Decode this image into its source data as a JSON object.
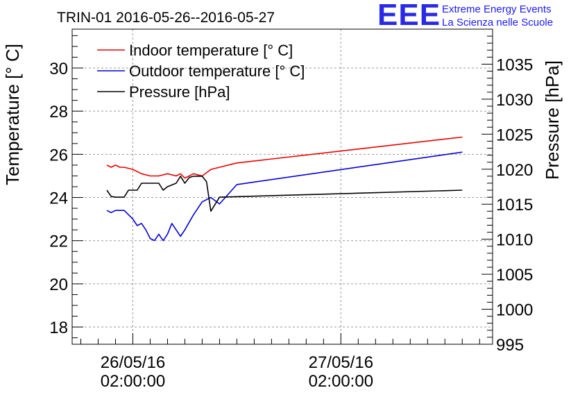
{
  "header": {
    "title": "TRIN-01 2016-05-26--2016-05-27"
  },
  "logo": {
    "mark": "EEE",
    "line1": "Extreme Energy Events",
    "line2": "La Scienza nelle Scuole"
  },
  "chart_data": {
    "type": "line",
    "title": "TRIN-01 2016-05-26--2016-05-27",
    "ylabel": "Temperature [° C]",
    "y2label": "Pressure [hPa]",
    "ylim": [
      17.2,
      31.8
    ],
    "y2lim": [
      995,
      1040
    ],
    "yticks": [
      18,
      20,
      22,
      24,
      26,
      28,
      30
    ],
    "y2ticks": [
      995,
      1000,
      1005,
      1010,
      1015,
      1020,
      1025,
      1030,
      1035
    ],
    "x_tick_labels": [
      {
        "date": "26/05/16",
        "time": "02:00:00",
        "hours": 2
      },
      {
        "date": "27/05/16",
        "time": "02:00:00",
        "hours": 26
      }
    ],
    "xlim_hours": [
      -5.0,
      43.5
    ],
    "grid": true,
    "legend_position": "top-left",
    "series": [
      {
        "name": "Indoor temperature [° C]",
        "color": "#e60000",
        "axis": "left",
        "x_hours": [
          -1.0,
          -0.5,
          0.0,
          0.5,
          1.0,
          2.0,
          3.0,
          4.0,
          5.0,
          6.0,
          7.0,
          7.5,
          8.0,
          8.5,
          9.0,
          10.0,
          11.0,
          12.0,
          14.0,
          40.0
        ],
        "values": [
          25.5,
          25.4,
          25.5,
          25.4,
          25.4,
          25.3,
          25.1,
          25.0,
          25.0,
          25.1,
          25.0,
          25.1,
          24.9,
          25.0,
          25.1,
          25.0,
          25.3,
          25.4,
          25.6,
          26.8
        ]
      },
      {
        "name": "Outdoor temperature [° C]",
        "color": "#0000d6",
        "axis": "left",
        "x_hours": [
          -1.0,
          -0.5,
          0.0,
          1.0,
          2.0,
          2.5,
          3.0,
          3.5,
          4.0,
          4.5,
          5.0,
          5.5,
          6.0,
          6.5,
          7.0,
          7.5,
          8.0,
          9.0,
          10.0,
          11.0,
          12.0,
          14.0,
          40.0
        ],
        "values": [
          23.4,
          23.3,
          23.4,
          23.4,
          23.0,
          22.7,
          22.8,
          22.5,
          22.1,
          22.0,
          22.3,
          22.0,
          22.3,
          22.8,
          22.5,
          22.2,
          22.5,
          23.2,
          23.8,
          24.0,
          23.7,
          24.6,
          26.1
        ]
      },
      {
        "name": "Pressure [hPa]",
        "color": "#000000",
        "axis": "right",
        "x_hours": [
          -1.0,
          -0.5,
          0.0,
          1.0,
          1.5,
          2.5,
          3.0,
          5.0,
          5.5,
          6.0,
          7.0,
          7.5,
          8.0,
          8.5,
          9.0,
          10.0,
          10.5,
          11.0,
          12.0,
          40.0
        ],
        "values": [
          1017.0,
          1016.1,
          1016.0,
          1016.0,
          1017.0,
          1017.0,
          1018.0,
          1018.0,
          1017.0,
          1017.5,
          1018.0,
          1019.0,
          1018.0,
          1018.8,
          1019.0,
          1019.0,
          1018.2,
          1014.0,
          1016.0,
          1017.0
        ]
      }
    ]
  }
}
